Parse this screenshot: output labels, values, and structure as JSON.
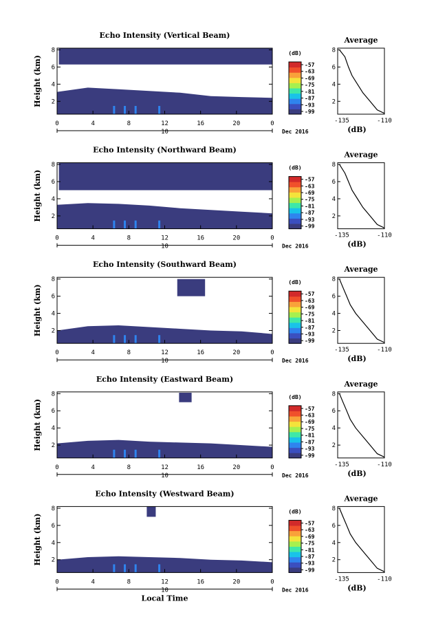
{
  "x_axis": {
    "ticks": [
      "0",
      "4",
      "8",
      "12",
      "16",
      "20",
      "0"
    ],
    "day": "10",
    "month_label": "Dec 2016",
    "label": "Local Time"
  },
  "y_axis": {
    "label": "Height (km)",
    "ticks": [
      "2",
      "4",
      "6",
      "8"
    ]
  },
  "colorbar": {
    "unit": "(dB)",
    "ticks": [
      "-57",
      "-63",
      "-69",
      "-75",
      "-81",
      "-87",
      "-93",
      "-99"
    ],
    "colors": [
      "#3a3c7e",
      "#3b4fbf",
      "#2f84ee",
      "#19c3e8",
      "#3ee8a8",
      "#a6f04f",
      "#f4e33b",
      "#f9a23a",
      "#f0502b",
      "#d22a2a"
    ]
  },
  "profile": {
    "title": "Average",
    "xlabel": "(dB)",
    "x_ticks": [
      "-135",
      "-110"
    ],
    "y_ticks": [
      "2",
      "4",
      "6",
      "8"
    ]
  },
  "colors": {
    "echo_fill": "#3a3c7e",
    "background": "#ffffff"
  },
  "chart_data": [
    {
      "type": "heatmap",
      "title": "Echo Intensity (Vertical Beam)",
      "xlabel": "",
      "ylabel": "Height (km)",
      "xlim": [
        0,
        24
      ],
      "ylim": [
        0.5,
        8.2
      ],
      "layers": [
        {
          "x": [
            0,
            24
          ],
          "y_bottom": 0.5,
          "y_top": [
            3.1,
            3.6,
            3.4,
            3.2,
            3.0,
            2.6,
            2.5,
            2.4
          ],
          "value_db": -99
        },
        {
          "x": [
            0.2,
            24
          ],
          "y_bottom": 6.3,
          "y_top": 8.2,
          "value_db": -99
        }
      ],
      "profile": {
        "x": [
          -135,
          -132,
          -130,
          -128,
          -125,
          -122,
          -118,
          -114,
          -110
        ],
        "y": [
          8.0,
          7.2,
          6.0,
          5.0,
          4.0,
          3.0,
          2.0,
          1.0,
          0.6
        ]
      }
    },
    {
      "type": "heatmap",
      "title": "Echo Intensity (Northward Beam)",
      "xlabel": "",
      "ylabel": "Height (km)",
      "xlim": [
        0,
        24
      ],
      "ylim": [
        0.5,
        8.2
      ],
      "layers": [
        {
          "x": [
            0,
            24
          ],
          "y_bottom": 0.5,
          "y_top": [
            3.3,
            3.5,
            3.4,
            3.2,
            2.9,
            2.7,
            2.5,
            2.3
          ],
          "value_db": -99
        },
        {
          "x": [
            0.2,
            24
          ],
          "y_bottom": 5.0,
          "y_top": 8.2,
          "value_db": -99
        }
      ],
      "profile": {
        "x": [
          -135,
          -132,
          -130,
          -128,
          -125,
          -122,
          -118,
          -114,
          -110
        ],
        "y": [
          8.0,
          7.0,
          6.0,
          5.0,
          4.0,
          3.0,
          2.0,
          1.0,
          0.6
        ]
      }
    },
    {
      "type": "heatmap",
      "title": "Echo Intensity (Southward Beam)",
      "xlabel": "",
      "ylabel": "Height (km)",
      "xlim": [
        0,
        24
      ],
      "ylim": [
        0.5,
        8.2
      ],
      "layers": [
        {
          "x": [
            0,
            24
          ],
          "y_bottom": 0.5,
          "y_top": [
            2.0,
            2.5,
            2.6,
            2.4,
            2.2,
            2.0,
            1.9,
            1.6
          ],
          "value_db": -99
        },
        {
          "x": [
            13.4,
            16.5
          ],
          "y_bottom": 6.0,
          "y_top": 8.0,
          "value_db": -99
        }
      ],
      "profile": {
        "x": [
          -135,
          -133,
          -131,
          -129,
          -126,
          -122,
          -118,
          -114,
          -110
        ],
        "y": [
          8.0,
          7.0,
          6.0,
          5.0,
          4.0,
          3.0,
          2.0,
          1.0,
          0.6
        ]
      }
    },
    {
      "type": "heatmap",
      "title": "Echo Intensity (Eastward Beam)",
      "xlabel": "",
      "ylabel": "Height (km)",
      "xlim": [
        0,
        24
      ],
      "ylim": [
        0.5,
        8.2
      ],
      "layers": [
        {
          "x": [
            0,
            24
          ],
          "y_bottom": 0.5,
          "y_top": [
            2.2,
            2.5,
            2.6,
            2.4,
            2.3,
            2.2,
            2.0,
            1.8
          ],
          "value_db": -99
        },
        {
          "x": [
            13.6,
            15.0
          ],
          "y_bottom": 7.0,
          "y_top": 8.1,
          "value_db": -99
        }
      ],
      "profile": {
        "x": [
          -135,
          -133,
          -131,
          -129,
          -126,
          -122,
          -118,
          -114,
          -110
        ],
        "y": [
          8.0,
          7.0,
          6.0,
          5.0,
          4.0,
          3.0,
          2.0,
          1.0,
          0.6
        ]
      }
    },
    {
      "type": "heatmap",
      "title": "Echo Intensity (Westward Beam)",
      "xlabel": "Local Time",
      "ylabel": "Height (km)",
      "xlim": [
        0,
        24
      ],
      "ylim": [
        0.5,
        8.2
      ],
      "layers": [
        {
          "x": [
            0,
            24
          ],
          "y_bottom": 0.5,
          "y_top": [
            2.0,
            2.3,
            2.4,
            2.3,
            2.2,
            2.0,
            1.9,
            1.7
          ],
          "value_db": -99
        },
        {
          "x": [
            10.0,
            11.0
          ],
          "y_bottom": 7.0,
          "y_top": 8.2,
          "value_db": -99
        }
      ],
      "profile": {
        "x": [
          -135,
          -133,
          -131,
          -129,
          -126,
          -122,
          -118,
          -114,
          -110
        ],
        "y": [
          8.0,
          7.0,
          6.0,
          5.0,
          4.0,
          3.0,
          2.0,
          1.0,
          0.6
        ]
      }
    }
  ]
}
